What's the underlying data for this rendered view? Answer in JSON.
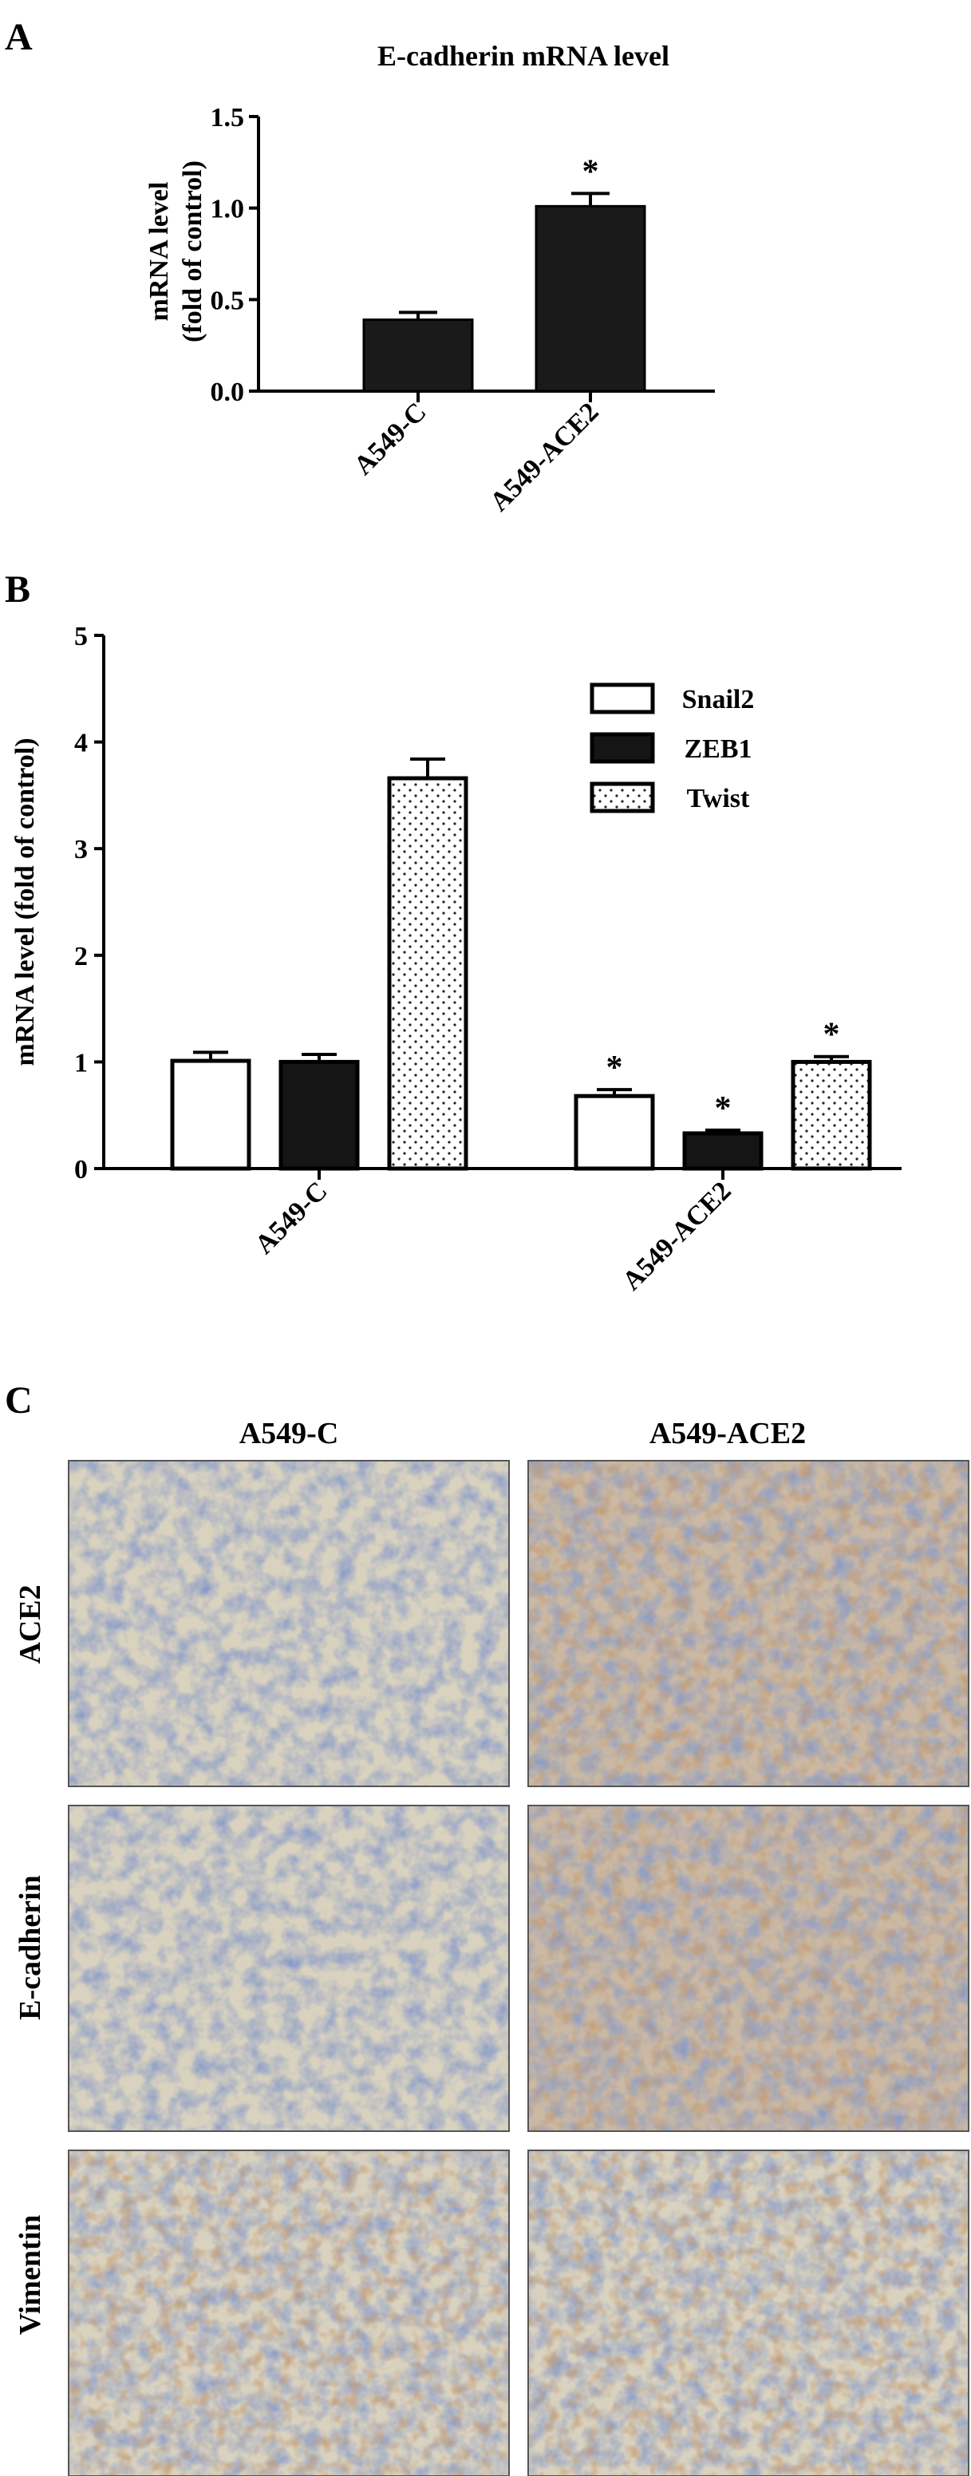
{
  "panels": {
    "a": {
      "letter": "A"
    },
    "b": {
      "letter": "B"
    },
    "c": {
      "letter": "C",
      "columns": [
        "A549-C",
        "A549-ACE2"
      ],
      "rows": [
        "ACE2",
        "E-cadherin",
        "Vimentin"
      ],
      "description": "Immunohistochemistry micrographs of tumor tissue (blue nuclei, brown staining)"
    }
  },
  "chart_data": [
    {
      "type": "bar",
      "title": "E-cadherin mRNA level",
      "ylabel_line1": "mRNA level",
      "ylabel_line2": "(fold of control)",
      "categories": [
        "A549-C",
        "A549-ACE2"
      ],
      "values": [
        0.39,
        1.01
      ],
      "errors": [
        0.04,
        0.07
      ],
      "significance": [
        "",
        "*"
      ],
      "ylim": [
        0,
        1.5
      ],
      "yticks": [
        "0.0",
        "0.5",
        "1.0",
        "1.5"
      ],
      "colors": {
        "bar": "#1a1a1a"
      }
    },
    {
      "type": "bar",
      "ylabel": "mRNA level  (fold of control)",
      "categories": [
        "A549-C",
        "A549-ACE2"
      ],
      "ylim": [
        0,
        5
      ],
      "yticks": [
        "0",
        "1",
        "2",
        "3",
        "4",
        "5"
      ],
      "legend_position": "top-right",
      "series": [
        {
          "name": "Snail2",
          "values": [
            1.01,
            0.68
          ],
          "errors": [
            0.08,
            0.06
          ],
          "significance": [
            "",
            "*"
          ],
          "fill": "white"
        },
        {
          "name": "ZEB1",
          "values": [
            1.0,
            0.33
          ],
          "errors": [
            0.07,
            0.03
          ],
          "significance": [
            "",
            "*"
          ],
          "fill": "black"
        },
        {
          "name": "Twist",
          "values": [
            3.66,
            1.0
          ],
          "errors": [
            0.18,
            0.05
          ],
          "significance": [
            "",
            "*"
          ],
          "fill": "dotted"
        }
      ]
    }
  ]
}
